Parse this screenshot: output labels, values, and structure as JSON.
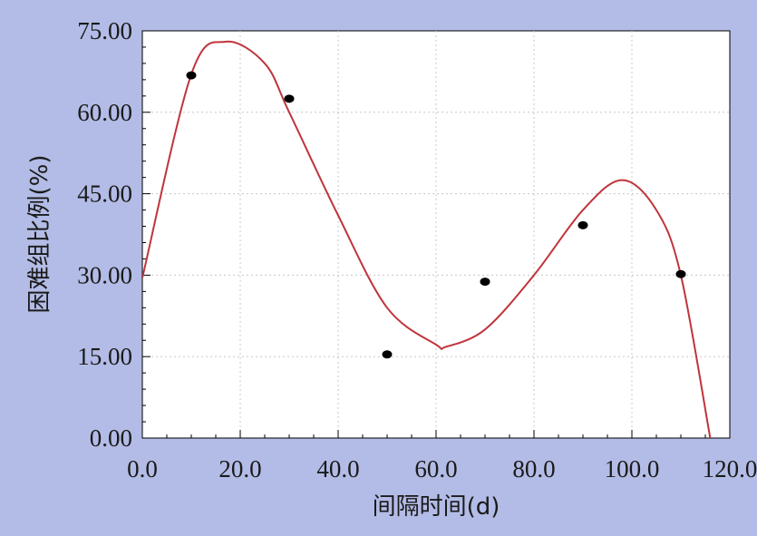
{
  "chart_data": {
    "type": "scatter",
    "xlabel": "间隔时间(d)",
    "ylabel": "困难组比例(%)",
    "xlim": [
      0,
      120
    ],
    "ylim": [
      0,
      75
    ],
    "x_ticks": [
      "0.0",
      "20.0",
      "40.0",
      "60.0",
      "80.0",
      "100.0",
      "120.0"
    ],
    "y_ticks": [
      "0.00",
      "15.00",
      "30.00",
      "45.00",
      "60.00",
      "75.00"
    ],
    "grid": true,
    "series": [
      {
        "kind": "points",
        "x": [
          10,
          30,
          50,
          70,
          90,
          110
        ],
        "y": [
          66.8,
          62.5,
          15.4,
          28.8,
          39.2,
          30.2
        ]
      },
      {
        "kind": "fit-curve",
        "x": [
          0,
          10,
          17,
          25,
          30,
          40,
          50,
          60,
          62,
          70,
          80,
          90,
          98,
          105,
          110,
          116
        ],
        "y": [
          29.5,
          67,
          73,
          69,
          60,
          41,
          24,
          17.2,
          16.8,
          20,
          30,
          42,
          47.5,
          42,
          30,
          0
        ]
      }
    ],
    "colors": {
      "curve": "#c0343b",
      "points": "#000000",
      "grid": "#c8c8c8"
    }
  }
}
